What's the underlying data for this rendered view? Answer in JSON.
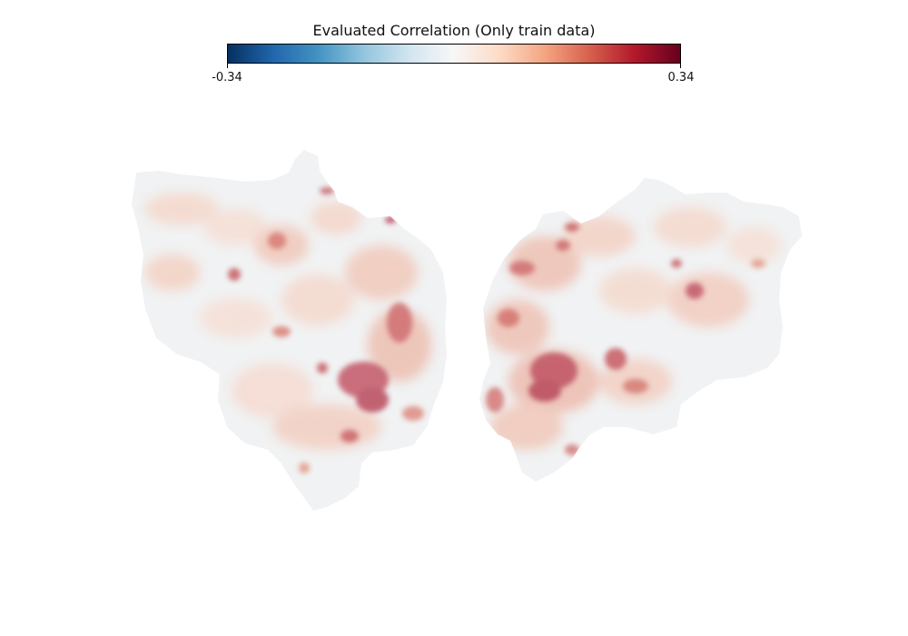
{
  "colorbar": {
    "title": "Evaluated Correlation (Only train data)",
    "min_label": "-0.34",
    "max_label": "0.34",
    "vmin": -0.34,
    "vmax": 0.34,
    "colormap": "RdBu_r",
    "stops": [
      "#053061",
      "#2166ac",
      "#4393c3",
      "#92c5de",
      "#d1e5f0",
      "#f7f7f7",
      "#fddbc7",
      "#f4a582",
      "#d6604d",
      "#b2182b",
      "#67001f"
    ]
  },
  "flatmap": {
    "base_color": "#f1f1f1",
    "hemispheres": [
      "left",
      "right"
    ]
  }
}
